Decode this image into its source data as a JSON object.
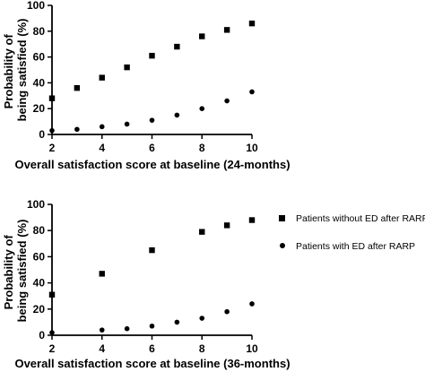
{
  "chart_data": [
    {
      "type": "scatter",
      "title": "",
      "xlabel": "Overall satisfaction score at baseline (24-months)",
      "ylabel": [
        "Probability of",
        "being satisfied (%)"
      ],
      "xlim": [
        2,
        10
      ],
      "ylim": [
        0,
        100
      ],
      "x_ticks": [
        2,
        4,
        6,
        8,
        10
      ],
      "y_ticks": [
        0,
        20,
        40,
        60,
        80,
        100
      ],
      "grid": false,
      "series": [
        {
          "name": "Patients without ED after RARP",
          "marker": "square",
          "x": [
            2,
            3,
            4,
            5,
            6,
            7,
            8,
            9,
            10
          ],
          "values": [
            28,
            36,
            44,
            52,
            61,
            68,
            76,
            81,
            86
          ]
        },
        {
          "name": "Patients with ED after RARP",
          "marker": "circle",
          "x": [
            2,
            3,
            4,
            5,
            6,
            7,
            8,
            9,
            10
          ],
          "values": [
            3,
            4,
            6,
            8,
            11,
            15,
            20,
            26,
            33
          ]
        }
      ]
    },
    {
      "type": "scatter",
      "title": "",
      "xlabel": "Overall satisfaction score at baseline (36-months)",
      "ylabel": [
        "Probability of",
        "being satisfied (%)"
      ],
      "xlim": [
        2,
        10
      ],
      "ylim": [
        0,
        100
      ],
      "x_ticks": [
        2,
        4,
        6,
        8,
        10
      ],
      "y_ticks": [
        0,
        20,
        40,
        60,
        80,
        100
      ],
      "grid": false,
      "legend": "right",
      "series": [
        {
          "name": "Patients without ED after RARP",
          "marker": "square",
          "x": [
            2,
            4,
            6,
            8,
            9,
            10
          ],
          "values": [
            31,
            47,
            65,
            79,
            84,
            88
          ]
        },
        {
          "name": "Patients with ED after RARP",
          "marker": "circle",
          "x": [
            2,
            4,
            5,
            6,
            7,
            8,
            9,
            10
          ],
          "values": [
            2,
            4,
            5,
            7,
            10,
            13,
            18,
            24
          ]
        }
      ]
    }
  ],
  "colors": {
    "marker": "#000000",
    "axis": "#000000"
  }
}
